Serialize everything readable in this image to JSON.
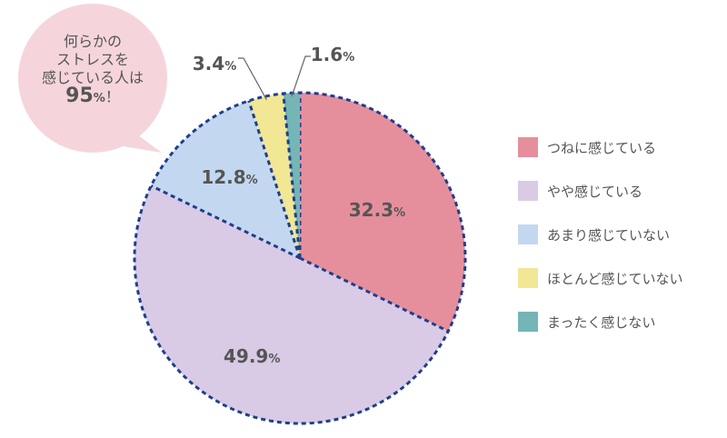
{
  "callout": {
    "line1": "何らかの",
    "line2": "ストレスを",
    "line3": "感じている人は",
    "value": "95",
    "unit": "%",
    "suffix": "！"
  },
  "chart_data": {
    "type": "pie",
    "unit": "%",
    "start": "12 o'clock",
    "direction": "clockwise",
    "border": "dotted navy",
    "slices": [
      {
        "label": "つねに感じている",
        "value": 32.3,
        "color": "#E58F9D"
      },
      {
        "label": "やや感じている",
        "value": 49.9,
        "color": "#D9CAE6"
      },
      {
        "label": "あまり感じていない",
        "value": 12.8,
        "color": "#C3D8F0"
      },
      {
        "label": "ほとんど感じていない",
        "value": 3.4,
        "color": "#F1E794"
      },
      {
        "label": "まったく感じない",
        "value": 1.6,
        "color": "#74B5B6"
      }
    ],
    "legend": "right"
  }
}
